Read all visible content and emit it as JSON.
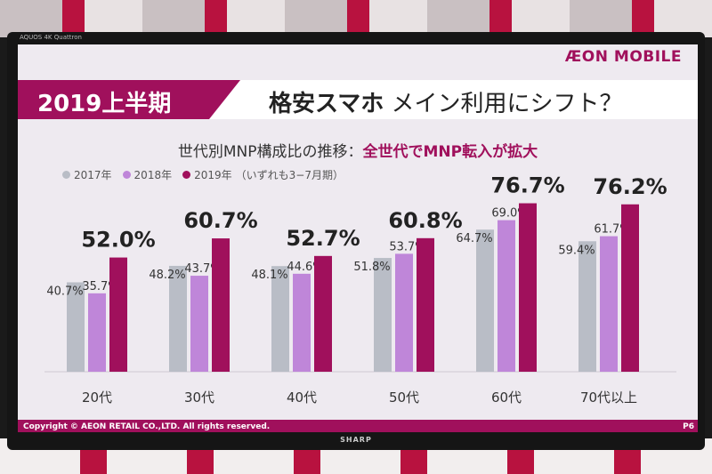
{
  "tv": {
    "brand_left": "AQUOS 4K Quattron",
    "brand_right": "",
    "maker": "SHARP"
  },
  "slide": {
    "logo": "ÆON MOBILE",
    "period": "2019上半期",
    "title_bold": "格安スマホ",
    "title_rest": "メイン利用にシフト？",
    "subtitle_plain": "世代別MNP構成比の推移：",
    "subtitle_highlight": "全世代でMNP転入が拡大",
    "legend_note": "（いずれも3−7月期）",
    "copyright": "Copyright © AEON RETAIL CO.,LTD. All rights reserved.",
    "page": "P6"
  },
  "colors": {
    "accent": "#a0105c",
    "s2017": "#b9bdc6",
    "s2018": "#bf86d9",
    "s2019": "#a0105c"
  },
  "chart_data": {
    "type": "bar",
    "categories": [
      "20代",
      "30代",
      "40代",
      "50代",
      "60代",
      "70代以上"
    ],
    "series": [
      {
        "name": "2017年",
        "values": [
          40.7,
          48.2,
          48.1,
          51.8,
          64.7,
          59.4
        ]
      },
      {
        "name": "2018年",
        "values": [
          35.7,
          43.7,
          44.6,
          53.7,
          69.0,
          61.7
        ]
      },
      {
        "name": "2019年",
        "values": [
          52.0,
          60.7,
          52.7,
          60.8,
          76.7,
          76.2
        ]
      }
    ],
    "labels": [
      [
        "40.7%",
        "35.7%",
        "52.0%"
      ],
      [
        "48.2%",
        "43.7%",
        "60.7%"
      ],
      [
        "48.1%",
        "44.6%",
        "52.7%"
      ],
      [
        "51.8%",
        "53.7%",
        "60.8%"
      ],
      [
        "64.7%",
        "69.0%",
        "76.7%"
      ],
      [
        "59.4%",
        "61.7%",
        "76.2%"
      ]
    ],
    "ylim": [
      0,
      100
    ],
    "grid": false
  }
}
